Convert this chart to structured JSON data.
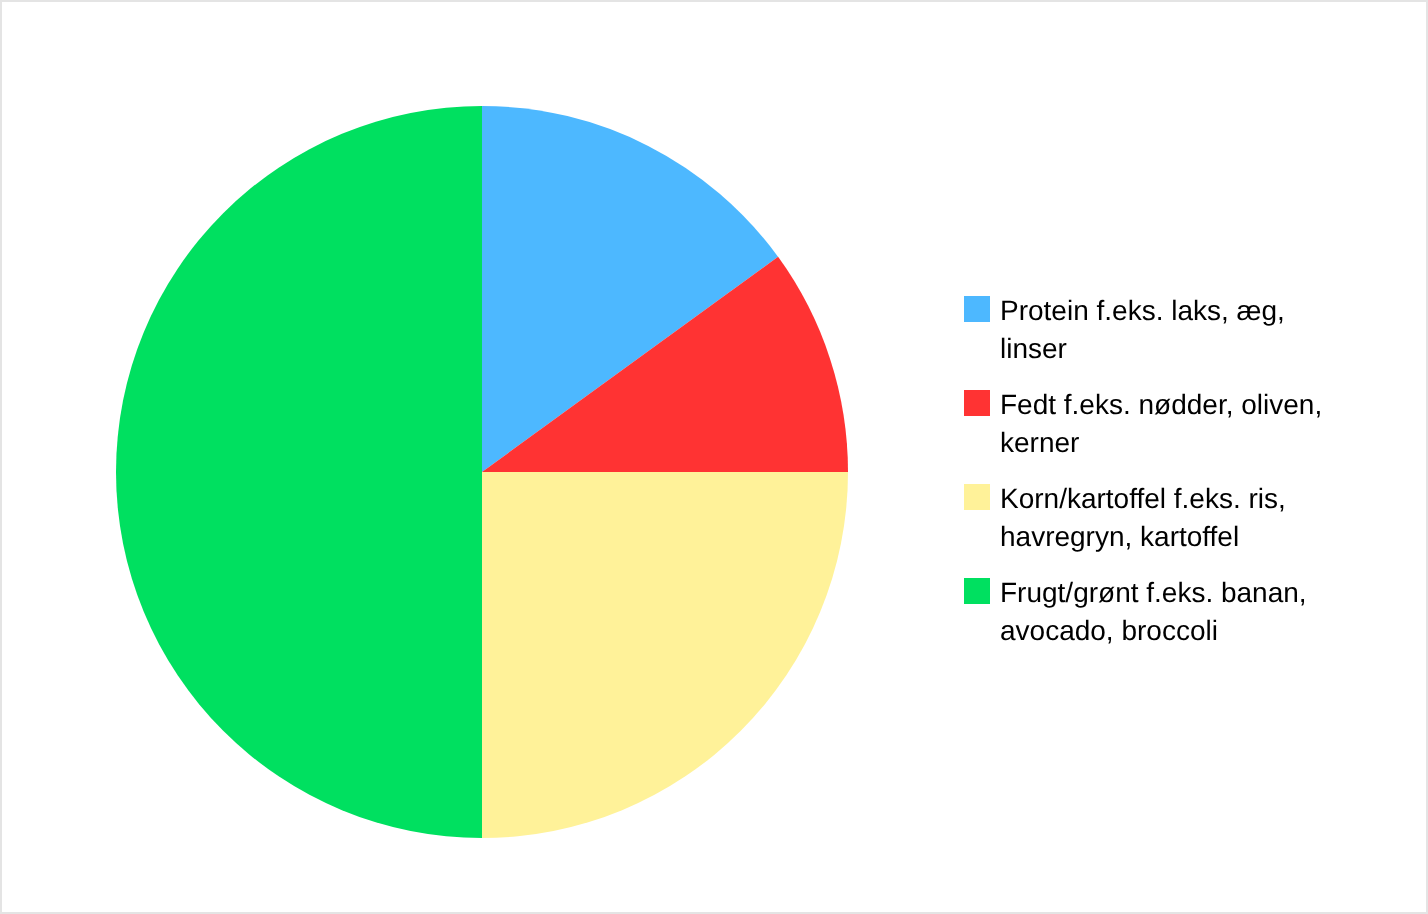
{
  "chart_data": {
    "type": "pie",
    "categories": [
      "Protein f.eks. laks, æg, linser",
      "Fedt f.eks. nødder, oliven, kerner",
      "Korn/kartoffel f.eks. ris, havregryn, kartoffel",
      "Frugt/grønt f.eks. banan, avocado, broccoli"
    ],
    "values": [
      15,
      10,
      25,
      50
    ],
    "colors": [
      "#4db8ff",
      "#ff3333",
      "#fff299",
      "#00e060"
    ],
    "legend": "right"
  }
}
